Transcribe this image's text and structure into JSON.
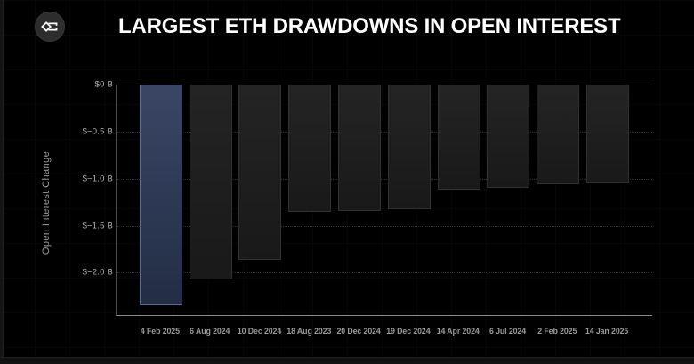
{
  "header": {
    "title": "LARGEST ETH DRAWDOWNS IN OPEN INTEREST",
    "logo": "sigma-diamond-logo"
  },
  "chart_data": {
    "type": "bar",
    "title": "LARGEST ETH DRAWDOWNS IN OPEN INTEREST",
    "xlabel": "",
    "ylabel": "Open Interest Change",
    "unit": "$ billions",
    "categories": [
      "4 Feb 2025",
      "6 Aug 2024",
      "10 Dec 2024",
      "18 Aug 2023",
      "20 Dec 2024",
      "19 Dec 2024",
      "14 Apr 2024",
      "6 Jul 2024",
      "2 Feb 2025",
      "14 Jan 2025"
    ],
    "values": [
      -2.35,
      -2.07,
      -1.86,
      -1.35,
      -1.34,
      -1.32,
      -1.12,
      -1.1,
      -1.06,
      -1.05
    ],
    "ylim": [
      -2.46,
      0
    ],
    "yticks": [
      {
        "label": "$0 B",
        "value": 0
      },
      {
        "label": "$−0.5 B",
        "value": -0.5
      },
      {
        "label": "$−1.0 B",
        "value": -1.0
      },
      {
        "label": "$−1.5 B",
        "value": -1.5
      },
      {
        "label": "$−2.0 B",
        "value": -2.0
      }
    ],
    "grid": "horizontal-dotted",
    "legend_position": "none",
    "highlight_index": 0,
    "colors": {
      "background": "#000000",
      "highlight_bar": "#2e3a55",
      "highlight_bar_border": "#5a6a92",
      "bar": "#1e1e1e",
      "bar_border": "#313131",
      "axis_line": "#8f8f8f",
      "tick_text": "#b3b3b3",
      "title_text": "#ffffff"
    }
  }
}
